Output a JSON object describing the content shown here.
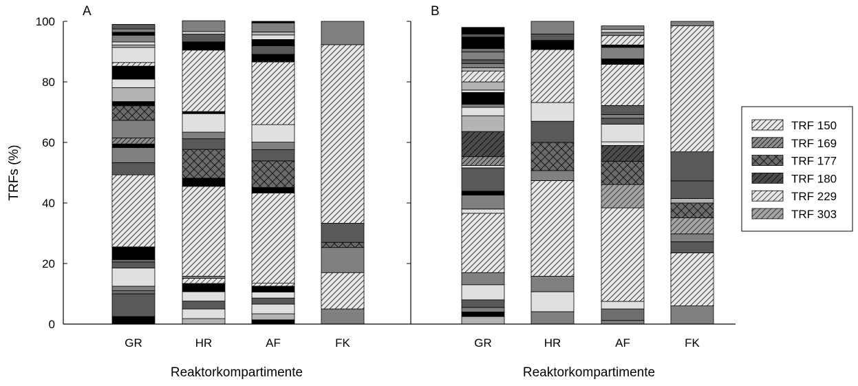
{
  "chart_data": {
    "type": "bar",
    "stacked": true,
    "ylabel": "TRFs (%)",
    "ylim": [
      0,
      100
    ],
    "yticks": [
      0,
      20,
      40,
      60,
      80,
      100
    ],
    "legend": {
      "placement": "right",
      "entries": [
        "TRF 150",
        "TRF 169",
        "TRF 177",
        "TRF 180",
        "TRF 229",
        "TRF 303"
      ]
    },
    "panels": [
      {
        "label": "A",
        "xlabel": "Reaktorkompartimente",
        "categories": [
          "GR",
          "HR",
          "AF",
          "FK"
        ],
        "stacks": [
          [
            {
              "v": 2.5,
              "s": "black"
            },
            {
              "v": 7.5,
              "s": "dark"
            },
            {
              "v": 1,
              "s": "mid"
            },
            {
              "v": 1.5,
              "s": "gray"
            },
            {
              "v": 6,
              "s": "white"
            },
            {
              "v": 2,
              "s": "dark"
            },
            {
              "v": 0.8,
              "s": "mid"
            },
            {
              "v": 4.2,
              "s": "black"
            },
            {
              "v": 23.8,
              "s": "h150"
            },
            {
              "v": 4,
              "s": "dark"
            },
            {
              "v": 5,
              "s": "gray"
            },
            {
              "v": 1.2,
              "s": "black"
            },
            {
              "v": 2,
              "s": "h169"
            },
            {
              "v": 5.8,
              "s": "gray"
            },
            {
              "v": 4.8,
              "s": "h177"
            },
            {
              "v": 1.4,
              "s": "black"
            },
            {
              "v": 4.6,
              "s": "light"
            },
            {
              "v": 2.8,
              "s": "white"
            },
            {
              "v": 4.3,
              "s": "black"
            },
            {
              "v": 1.2,
              "s": "h229"
            },
            {
              "v": 5,
              "s": "white"
            },
            {
              "v": 0.8,
              "s": "light"
            },
            {
              "v": 1,
              "s": "white"
            },
            {
              "v": 2.2,
              "s": "gray"
            },
            {
              "v": 1,
              "s": "black"
            },
            {
              "v": 1.1,
              "s": "gray"
            },
            {
              "v": 1.5,
              "s": "dark"
            }
          ],
          [
            {
              "v": 1.8,
              "s": "light"
            },
            {
              "v": 3.2,
              "s": "white"
            },
            {
              "v": 2.6,
              "s": "dark"
            },
            {
              "v": 3.1,
              "s": "white"
            },
            {
              "v": 2.7,
              "s": "black"
            },
            {
              "v": 1.7,
              "s": "h229"
            },
            {
              "v": 0.7,
              "s": "gray"
            },
            {
              "v": 29.7,
              "s": "h150"
            },
            {
              "v": 2.7,
              "s": "black"
            },
            {
              "v": 9.5,
              "s": "h177"
            },
            {
              "v": 3.5,
              "s": "dark"
            },
            {
              "v": 2.2,
              "s": "gray"
            },
            {
              "v": 6.1,
              "s": "white"
            },
            {
              "v": 0.7,
              "s": "black"
            },
            {
              "v": 20.3,
              "s": "h150"
            },
            {
              "v": 2.7,
              "s": "black"
            },
            {
              "v": 2.6,
              "s": "dark"
            },
            {
              "v": 0.8,
              "s": "white"
            },
            {
              "v": 3.6,
              "s": "gray"
            }
          ],
          [
            {
              "v": 1.4,
              "s": "black"
            },
            {
              "v": 2,
              "s": "light"
            },
            {
              "v": 3.2,
              "s": "white"
            },
            {
              "v": 2,
              "s": "dark"
            },
            {
              "v": 2,
              "s": "white"
            },
            {
              "v": 1.9,
              "s": "black"
            },
            {
              "v": 1,
              "s": "h229"
            },
            {
              "v": 29.8,
              "s": "h150"
            },
            {
              "v": 1.8,
              "s": "black"
            },
            {
              "v": 8.8,
              "s": "h177"
            },
            {
              "v": 3.7,
              "s": "dark"
            },
            {
              "v": 2.5,
              "s": "gray"
            },
            {
              "v": 5.8,
              "s": "white"
            },
            {
              "v": 20.7,
              "s": "h150"
            },
            {
              "v": 2.5,
              "s": "black"
            },
            {
              "v": 2.8,
              "s": "dark"
            },
            {
              "v": 2.1,
              "s": "black"
            },
            {
              "v": 1.5,
              "s": "white"
            },
            {
              "v": 1,
              "s": "light"
            },
            {
              "v": 3,
              "s": "gray"
            },
            {
              "v": 0.5,
              "s": "black"
            }
          ],
          [
            {
              "v": 5,
              "s": "gray"
            },
            {
              "v": 12,
              "s": "h150"
            },
            {
              "v": 8.3,
              "s": "gray"
            },
            {
              "v": 1.7,
              "s": "h177"
            },
            {
              "v": 6.3,
              "s": "dark"
            },
            {
              "v": 59,
              "s": "h150"
            },
            {
              "v": 7.7,
              "s": "gray"
            }
          ]
        ]
      },
      {
        "label": "B",
        "xlabel": "Reaktorkompartimente",
        "categories": [
          "GR",
          "HR",
          "AF",
          "FK"
        ],
        "stacks": [
          [
            {
              "v": 2.5,
              "s": "light"
            },
            {
              "v": 1.5,
              "s": "black"
            },
            {
              "v": 1.5,
              "s": "gray"
            },
            {
              "v": 2.5,
              "s": "dark"
            },
            {
              "v": 5,
              "s": "white"
            },
            {
              "v": 4,
              "s": "gray"
            },
            {
              "v": 19.6,
              "s": "h150"
            },
            {
              "v": 1.4,
              "s": "white"
            },
            {
              "v": 4.6,
              "s": "gray"
            },
            {
              "v": 1.3,
              "s": "black"
            },
            {
              "v": 7.7,
              "s": "dark"
            },
            {
              "v": 0.8,
              "s": "white"
            },
            {
              "v": 2.9,
              "s": "h169"
            },
            {
              "v": 8.3,
              "s": "h180"
            },
            {
              "v": 5.2,
              "s": "light"
            },
            {
              "v": 2.8,
              "s": "white"
            },
            {
              "v": 1,
              "s": "gray"
            },
            {
              "v": 3.9,
              "s": "black"
            },
            {
              "v": 0.8,
              "s": "white"
            },
            {
              "v": 2.7,
              "s": "light"
            },
            {
              "v": 3.6,
              "s": "h229"
            },
            {
              "v": 1.1,
              "s": "light"
            },
            {
              "v": 1.3,
              "s": "gray"
            },
            {
              "v": 1.3,
              "s": "dark"
            },
            {
              "v": 2.6,
              "s": "gray"
            },
            {
              "v": 1.1,
              "s": "mid"
            },
            {
              "v": 3.8,
              "s": "black"
            },
            {
              "v": 1,
              "s": "dark"
            },
            {
              "v": 2.2,
              "s": "black"
            }
          ],
          [
            {
              "v": 4.1,
              "s": "gray"
            },
            {
              "v": 6.6,
              "s": "white"
            },
            {
              "v": 5.1,
              "s": "gray"
            },
            {
              "v": 31.6,
              "s": "h150"
            },
            {
              "v": 3.3,
              "s": "gray"
            },
            {
              "v": 9.3,
              "s": "h177"
            },
            {
              "v": 7,
              "s": "dark"
            },
            {
              "v": 6.2,
              "s": "white"
            },
            {
              "v": 17.5,
              "s": "h150"
            },
            {
              "v": 3,
              "s": "black"
            },
            {
              "v": 2.1,
              "s": "dark"
            },
            {
              "v": 4.2,
              "s": "gray"
            }
          ],
          [
            {
              "v": 1.2,
              "s": "gray"
            },
            {
              "v": 3.8,
              "s": "mid"
            },
            {
              "v": 2.5,
              "s": "white"
            },
            {
              "v": 30.9,
              "s": "h150"
            },
            {
              "v": 7.7,
              "s": "h303"
            },
            {
              "v": 7.7,
              "s": "h177"
            },
            {
              "v": 5.2,
              "s": "h180"
            },
            {
              "v": 1.2,
              "s": "white"
            },
            {
              "v": 5.8,
              "s": "white"
            },
            {
              "v": 2,
              "s": "dark"
            },
            {
              "v": 1.2,
              "s": "gray"
            },
            {
              "v": 3,
              "s": "dark"
            },
            {
              "v": 13.6,
              "s": "h150"
            },
            {
              "v": 1.8,
              "s": "black"
            },
            {
              "v": 3.8,
              "s": "gray"
            },
            {
              "v": 0.8,
              "s": "black"
            },
            {
              "v": 3.1,
              "s": "h229"
            },
            {
              "v": 1.1,
              "s": "gray"
            },
            {
              "v": 0.9,
              "s": "white"
            },
            {
              "v": 1.2,
              "s": "gray"
            }
          ],
          [
            {
              "v": 6,
              "s": "gray"
            },
            {
              "v": 17.5,
              "s": "h150"
            },
            {
              "v": 3.7,
              "s": "dark"
            },
            {
              "v": 2.6,
              "s": "gray"
            },
            {
              "v": 5.3,
              "s": "h303"
            },
            {
              "v": 4.9,
              "s": "h177"
            },
            {
              "v": 1.5,
              "s": "light"
            },
            {
              "v": 5.8,
              "s": "dark"
            },
            {
              "v": 9.6,
              "s": "dark"
            },
            {
              "v": 41.6,
              "s": "h150"
            },
            {
              "v": 1.5,
              "s": "gray"
            }
          ]
        ]
      }
    ]
  }
}
